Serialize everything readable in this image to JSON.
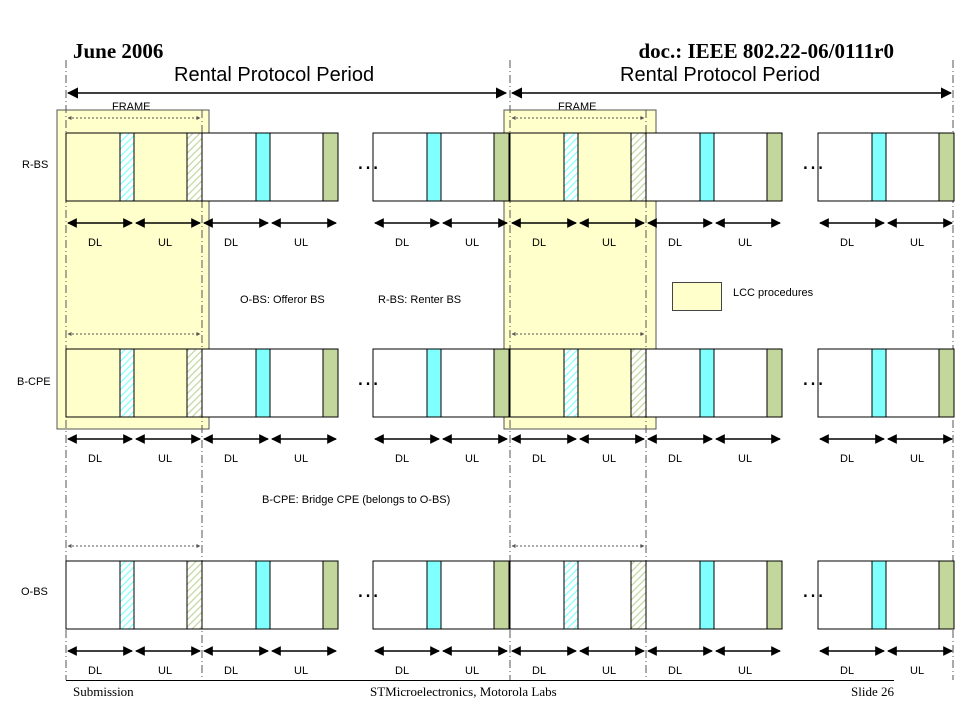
{
  "header": {
    "date": "June 2006",
    "doc": "doc.: IEEE 802.22-06/0111r0"
  },
  "periods": [
    "Rental Protocol Period",
    "Rental Protocol Period"
  ],
  "frame_label": "FRAME",
  "rows": [
    {
      "name": "R-BS",
      "dl_label": "DL",
      "ul_label": "UL"
    },
    {
      "name": "B-CPE",
      "dl_label": "DL",
      "ul_label": "UL"
    },
    {
      "name": "O-BS",
      "dl_label": "DL",
      "ul_label": "UL"
    }
  ],
  "ellipsis": "…",
  "definitions": {
    "obs": "O-BS: Offeror BS",
    "rbs": "R-BS: Renter BS",
    "bcpe": "B-CPE: Bridge CPE (belongs to O-BS)"
  },
  "legend": {
    "label": "LCC procedures",
    "color": "#ffffcc"
  },
  "colors": {
    "dl_marker": "#80ffff",
    "ul_marker": "#c3d69b",
    "highlight": "#ffffcc"
  },
  "footer": {
    "left": "Submission",
    "center": "STMicroelectronics, Motorola Labs",
    "right": "Slide 26"
  }
}
